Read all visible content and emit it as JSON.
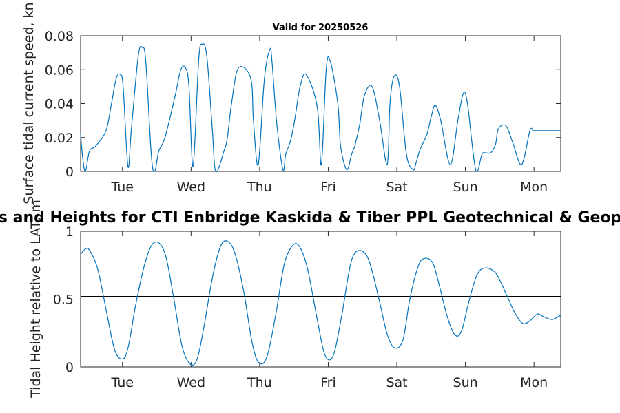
{
  "chart_data": [
    {
      "type": "line",
      "title": "Valid for 20250526",
      "ylabel": "Surface tidal current speed, kn",
      "ylim": [
        0,
        0.08
      ],
      "yticks": [
        "0",
        "0.02",
        "0.04",
        "0.06",
        "0.08"
      ],
      "yticks_values": [
        0,
        0.02,
        0.04,
        0.06,
        0.08
      ],
      "xticks": [
        "Tue",
        "Wed",
        "Thu",
        "Fri",
        "Sat",
        "Sun",
        "Mon"
      ],
      "xticks_values": [
        0.61,
        1.61,
        2.61,
        3.61,
        4.61,
        5.61,
        6.61
      ],
      "xlim": [
        0,
        7
      ],
      "grid": false,
      "line_color": "#0072bd",
      "series": [
        {
          "x": [
            0.0,
            0.03,
            0.07,
            0.13,
            0.22,
            0.37,
            0.45,
            0.52,
            0.58,
            0.62,
            0.69,
            0.74,
            0.84,
            0.9,
            0.95,
            1.03,
            1.08,
            1.14,
            1.23,
            1.38,
            1.46,
            1.53,
            1.58,
            1.64,
            1.72,
            1.77,
            1.84,
            1.92,
            1.97,
            2.09,
            2.14,
            2.2,
            2.3,
            2.48,
            2.52,
            2.59,
            2.68,
            2.76,
            2.79,
            2.86,
            2.95,
            2.99,
            3.06,
            3.12,
            3.2,
            3.29,
            3.45,
            3.51,
            3.58,
            3.64,
            3.75,
            3.79,
            3.88,
            3.95,
            3.99,
            4.01,
            4.07,
            4.14,
            4.25,
            4.36,
            4.47,
            4.51,
            4.57,
            4.65,
            4.75,
            4.85,
            4.89,
            4.95,
            5.05,
            5.11,
            5.17,
            5.25,
            5.39,
            5.5,
            5.58,
            5.64,
            5.76,
            5.85,
            5.89,
            5.98,
            6.05,
            6.09,
            6.2,
            6.3,
            6.43,
            6.55,
            6.6,
            6.65,
            6.74,
            6.85,
            6.95,
            7.0
          ],
          "y": [
            0.022,
            0.008,
            0.0,
            0.012,
            0.015,
            0.024,
            0.04,
            0.055,
            0.057,
            0.05,
            0.003,
            0.025,
            0.068,
            0.073,
            0.065,
            0.01,
            0.0,
            0.012,
            0.02,
            0.045,
            0.06,
            0.061,
            0.05,
            0.003,
            0.065,
            0.075,
            0.068,
            0.025,
            0.0,
            0.012,
            0.02,
            0.04,
            0.061,
            0.055,
            0.03,
            0.004,
            0.055,
            0.072,
            0.065,
            0.028,
            0.001,
            0.01,
            0.018,
            0.03,
            0.05,
            0.057,
            0.038,
            0.004,
            0.06,
            0.065,
            0.04,
            0.015,
            0.001,
            0.01,
            0.014,
            0.017,
            0.028,
            0.045,
            0.05,
            0.03,
            0.004,
            0.04,
            0.056,
            0.05,
            0.01,
            0.001,
            0.005,
            0.013,
            0.022,
            0.032,
            0.039,
            0.03,
            0.004,
            0.03,
            0.046,
            0.04,
            0.001,
            0.01,
            0.011,
            0.011,
            0.016,
            0.025,
            0.027,
            0.017,
            0.004,
            0.024,
            0.024,
            0.024,
            0.024,
            0.024,
            0.024,
            0.024
          ]
        }
      ]
    },
    {
      "type": "line",
      "title": "Tidal Currents and Heights for CTI Enbridge  Kaskida & Tiber PPL Geotechnical & Geophysical Surveys",
      "ylabel": "Tidal Height relative to LAT, m",
      "ylim": [
        0,
        1
      ],
      "yticks": [
        "0",
        "0.5",
        "1"
      ],
      "yticks_values": [
        0,
        0.5,
        1
      ],
      "xticks": [
        "Tue",
        "Wed",
        "Thu",
        "Fri",
        "Sat",
        "Sun",
        "Mon"
      ],
      "xticks_values": [
        0.61,
        1.61,
        2.61,
        3.61,
        4.61,
        5.61,
        6.61
      ],
      "xlim": [
        0,
        7
      ],
      "grid": false,
      "line_color": "#0072bd",
      "reference_line": {
        "y": 0.52,
        "color": "#000000"
      },
      "series": [
        {
          "x": [
            0.0,
            0.07,
            0.13,
            0.25,
            0.38,
            0.5,
            0.62,
            0.7,
            0.8,
            0.93,
            1.04,
            1.15,
            1.25,
            1.36,
            1.48,
            1.6,
            1.7,
            1.8,
            1.93,
            2.05,
            2.16,
            2.26,
            2.38,
            2.5,
            2.6,
            2.72,
            2.85,
            2.97,
            3.1,
            3.2,
            3.31,
            3.45,
            3.56,
            3.68,
            3.8,
            3.92,
            4.0,
            4.12,
            4.22,
            4.35,
            4.47,
            4.58,
            4.7,
            4.8,
            4.92,
            5.01,
            5.13,
            5.22,
            5.34,
            5.45,
            5.55,
            5.66,
            5.78,
            5.9,
            6.04,
            6.13,
            6.22,
            6.34,
            6.45,
            6.55,
            6.66,
            6.75,
            6.87,
            6.96,
            7.0
          ],
          "y": [
            0.83,
            0.87,
            0.86,
            0.72,
            0.4,
            0.12,
            0.06,
            0.16,
            0.45,
            0.75,
            0.9,
            0.91,
            0.8,
            0.5,
            0.15,
            0.02,
            0.06,
            0.3,
            0.68,
            0.9,
            0.92,
            0.82,
            0.55,
            0.18,
            0.03,
            0.08,
            0.4,
            0.76,
            0.9,
            0.88,
            0.72,
            0.35,
            0.09,
            0.08,
            0.36,
            0.72,
            0.84,
            0.85,
            0.76,
            0.5,
            0.24,
            0.14,
            0.2,
            0.5,
            0.74,
            0.8,
            0.77,
            0.62,
            0.38,
            0.24,
            0.26,
            0.48,
            0.68,
            0.73,
            0.7,
            0.62,
            0.52,
            0.39,
            0.32,
            0.34,
            0.39,
            0.37,
            0.35,
            0.37,
            0.38
          ]
        }
      ]
    }
  ]
}
